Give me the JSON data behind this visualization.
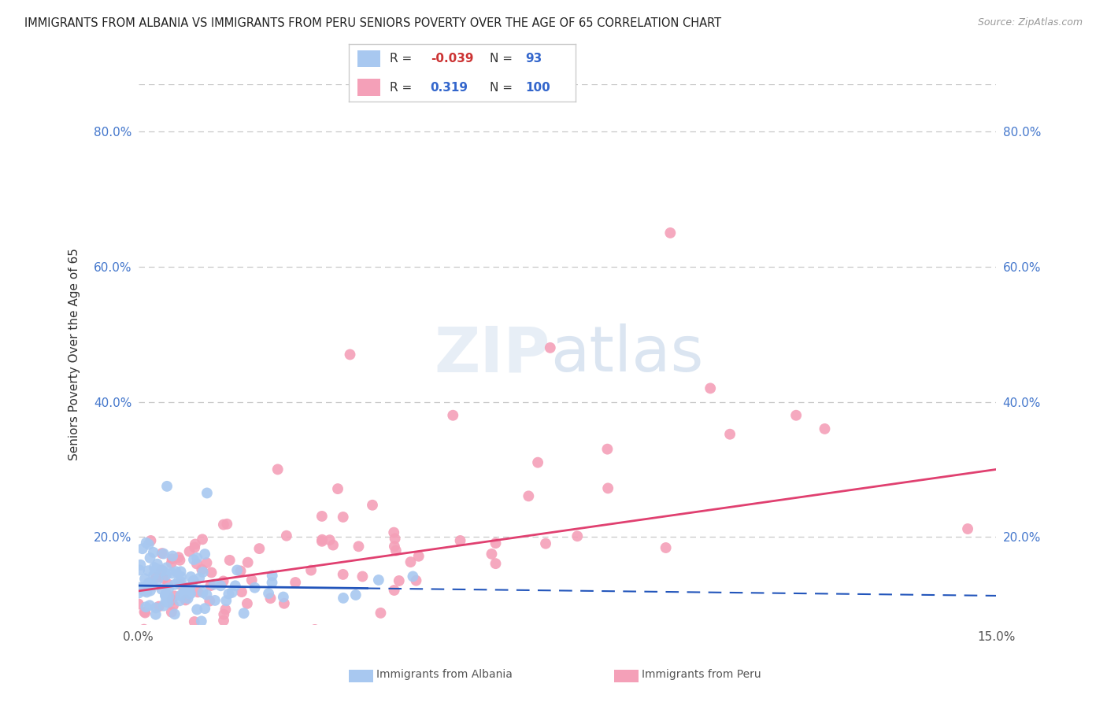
{
  "title": "IMMIGRANTS FROM ALBANIA VS IMMIGRANTS FROM PERU SENIORS POVERTY OVER THE AGE OF 65 CORRELATION CHART",
  "source": "Source: ZipAtlas.com",
  "ylabel": "Seniors Poverty Over the Age of 65",
  "xlabel_albania": "Immigrants from Albania",
  "xlabel_peru": "Immigrants from Peru",
  "xlim": [
    0.0,
    0.15
  ],
  "ylim": [
    0.07,
    0.87
  ],
  "yticks": [
    0.2,
    0.4,
    0.6,
    0.8
  ],
  "ytick_labels": [
    "20.0%",
    "40.0%",
    "60.0%",
    "80.0%"
  ],
  "xticks": [
    0.0,
    0.15
  ],
  "xtick_labels": [
    "0.0%",
    "15.0%"
  ],
  "albania_color": "#a8c8f0",
  "peru_color": "#f4a0b8",
  "albania_line_color": "#2255bb",
  "peru_line_color": "#e04070",
  "albania_R": -0.039,
  "albania_N": 93,
  "peru_R": 0.319,
  "peru_N": 100,
  "background_color": "#ffffff",
  "grid_color": "#c8c8c8",
  "title_fontsize": 11,
  "axis_label_fontsize": 10,
  "tick_color": "#4477cc",
  "legend_R_color_neg": "#cc3333",
  "legend_R_color_pos": "#3366cc",
  "legend_N_color": "#3366cc",
  "legend_label_color": "#333333"
}
